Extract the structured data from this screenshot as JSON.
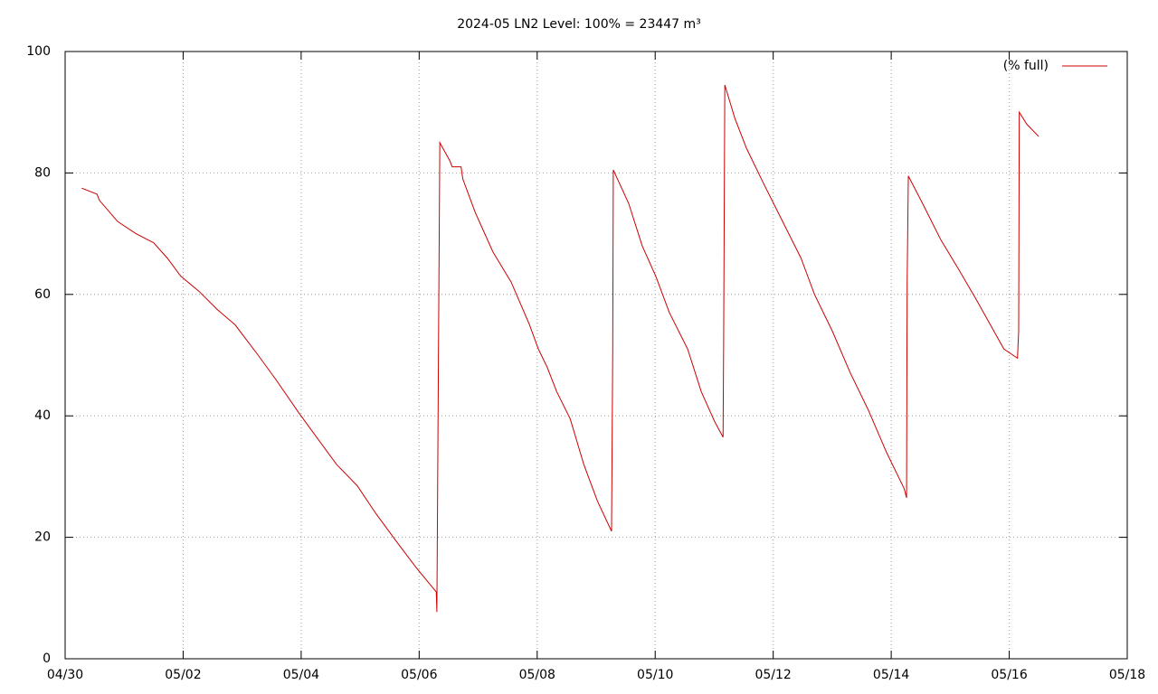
{
  "chart_data": {
    "type": "line",
    "title": "2024-05 LN2 Level: 100% = 23447 m³",
    "xlim": [
      0,
      18
    ],
    "xticks": [
      {
        "value": 0,
        "label": "04/30"
      },
      {
        "value": 2,
        "label": "05/02"
      },
      {
        "value": 4,
        "label": "05/04"
      },
      {
        "value": 6,
        "label": "05/06"
      },
      {
        "value": 8,
        "label": "05/08"
      },
      {
        "value": 10,
        "label": "05/10"
      },
      {
        "value": 12,
        "label": "05/12"
      },
      {
        "value": 14,
        "label": "05/14"
      },
      {
        "value": 16,
        "label": "05/16"
      },
      {
        "value": 18,
        "label": "05/18"
      }
    ],
    "ylim": [
      0,
      100
    ],
    "yticks": [
      0,
      20,
      40,
      60,
      80,
      100
    ],
    "grid": true,
    "legend": "top-right",
    "series": [
      {
        "name": "(% full)",
        "color": "#cc0000",
        "x": [
          0.28,
          0.54,
          0.58,
          0.89,
          1.2,
          1.5,
          1.73,
          1.96,
          2.27,
          2.58,
          2.88,
          3.27,
          3.57,
          3.96,
          4.26,
          4.6,
          4.95,
          5.26,
          5.6,
          5.95,
          6.29,
          6.3,
          6.33,
          6.35,
          6.52,
          6.56,
          6.71,
          6.74,
          6.95,
          7.25,
          7.56,
          7.87,
          8.02,
          8.17,
          8.33,
          8.56,
          8.79,
          9.02,
          9.26,
          9.28,
          9.29,
          9.55,
          9.78,
          10.01,
          10.24,
          10.55,
          10.78,
          11.01,
          11.15,
          11.16,
          11.18,
          11.35,
          11.55,
          11.85,
          12.16,
          12.47,
          12.7,
          13.0,
          13.31,
          13.61,
          13.92,
          14.22,
          14.26,
          14.27,
          14.29,
          14.53,
          14.84,
          15.15,
          15.45,
          15.68,
          15.91,
          16.14,
          16.16,
          16.17,
          16.3,
          16.5
        ],
        "values": [
          77.5,
          76.5,
          75.5,
          72,
          70,
          68.5,
          66,
          63,
          60.5,
          57.5,
          55,
          50,
          46,
          40.5,
          36.5,
          32,
          28.5,
          24,
          19.5,
          15,
          11,
          7.7,
          55,
          85,
          82,
          81,
          81,
          79,
          73.5,
          67,
          62,
          55,
          51,
          48,
          44,
          39.5,
          32,
          26,
          21,
          50,
          80.5,
          75,
          68,
          63,
          57,
          51,
          44,
          39,
          36.5,
          52,
          94.5,
          89,
          84,
          78,
          72,
          66,
          60,
          54,
          47,
          41,
          34,
          28,
          26.5,
          62,
          79.5,
          75,
          69,
          64,
          59,
          55,
          51,
          49.5,
          54,
          90,
          88,
          86
        ]
      }
    ]
  }
}
